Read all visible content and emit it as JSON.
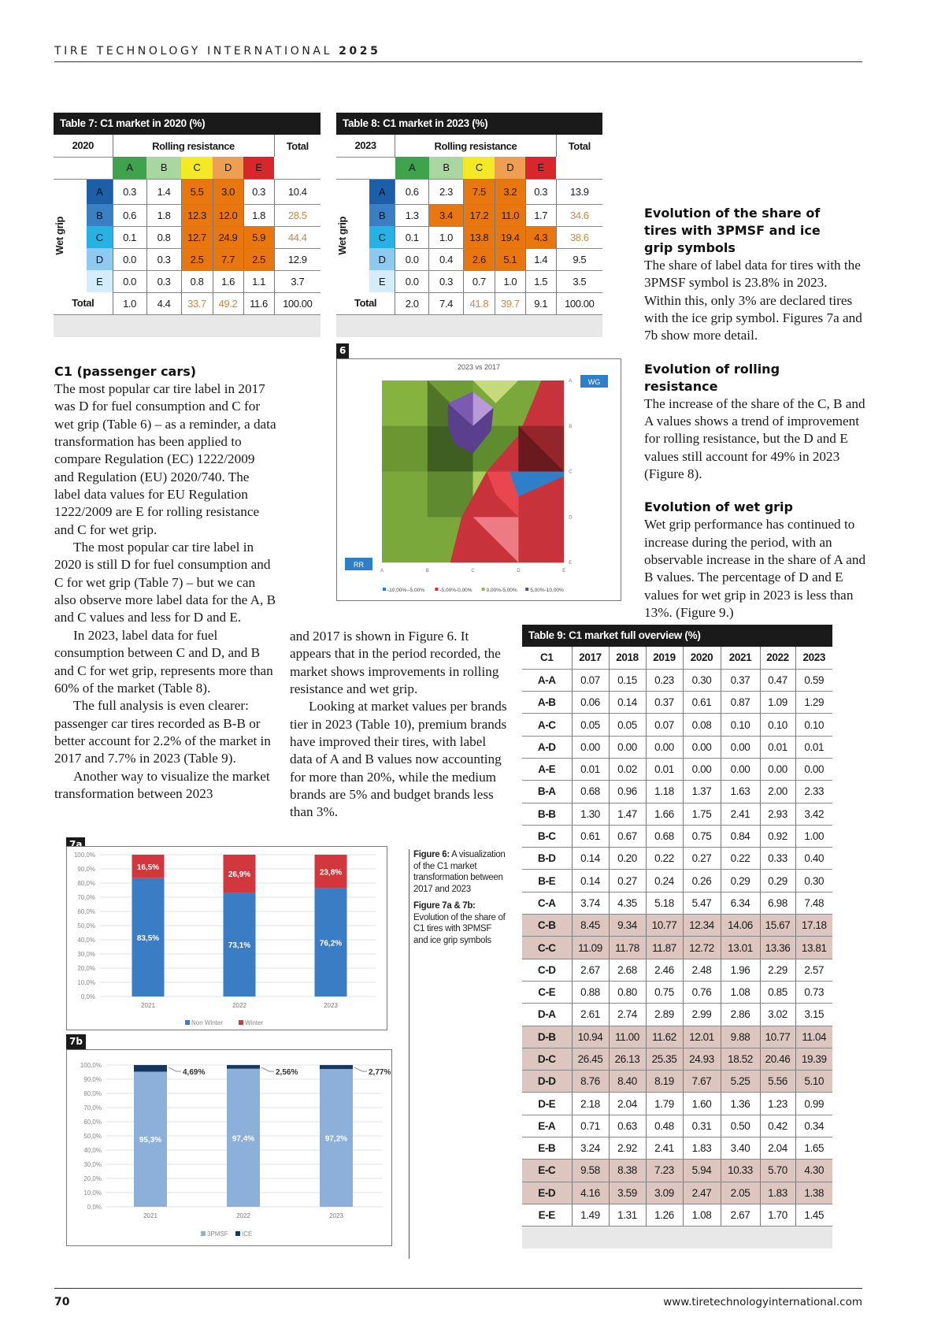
{
  "header": {
    "title": "TIRE TECHNOLOGY INTERNATIONAL",
    "year": "2025"
  },
  "grade_colors": {
    "rr": [
      "#3fa34d",
      "#a9d6a1",
      "#f3ea25",
      "#ef9f52",
      "#d7262c"
    ],
    "wg": [
      "#1c5ea8",
      "#3b7fc3",
      "#27b2e5",
      "#8ecaf0",
      "#d5ecfa"
    ]
  },
  "table7": {
    "title": "Table 7: C1 market in 2020 (%)",
    "year": "2020",
    "rr_label": "Rolling resistance",
    "total_label": "Total",
    "wg_label": "Wet grip",
    "grades": [
      "A",
      "B",
      "C",
      "D",
      "E"
    ],
    "rows": [
      {
        "grade": "A",
        "values": [
          "0.3",
          "1.4",
          "5.5",
          "3.0",
          "0.3"
        ],
        "total": "10.4",
        "hl": [
          0,
          0,
          1,
          1,
          0
        ],
        "tot_hl": 0
      },
      {
        "grade": "B",
        "values": [
          "0.6",
          "1.8",
          "12.3",
          "12.0",
          "1.8"
        ],
        "total": "28.5",
        "hl": [
          0,
          0,
          1,
          1,
          0
        ],
        "tot_hl": 1
      },
      {
        "grade": "C",
        "values": [
          "0.1",
          "0.8",
          "12.7",
          "24.9",
          "5.9"
        ],
        "total": "44.4",
        "hl": [
          0,
          0,
          1,
          1,
          1
        ],
        "tot_hl": 1
      },
      {
        "grade": "D",
        "values": [
          "0.0",
          "0.3",
          "2.5",
          "7.7",
          "2.5"
        ],
        "total": "12.9",
        "hl": [
          0,
          0,
          1,
          1,
          1
        ],
        "tot_hl": 0
      },
      {
        "grade": "E",
        "values": [
          "0.0",
          "0.3",
          "0.8",
          "1.6",
          "1.1"
        ],
        "total": "3.7",
        "hl": [
          0,
          0,
          0,
          0,
          0
        ],
        "tot_hl": 0
      }
    ],
    "totals": {
      "label": "Total",
      "values": [
        "1.0",
        "4.4",
        "33.7",
        "49.2",
        "11.6"
      ],
      "hl": [
        0,
        0,
        1,
        1,
        0
      ],
      "grand": "100.00"
    }
  },
  "table8": {
    "title": "Table 8: C1 market in 2023 (%)",
    "year": "2023",
    "rr_label": "Rolling resistance",
    "total_label": "Total",
    "wg_label": "Wet grip",
    "grades": [
      "A",
      "B",
      "C",
      "D",
      "E"
    ],
    "rows": [
      {
        "grade": "A",
        "values": [
          "0.6",
          "2.3",
          "7.5",
          "3.2",
          "0.3"
        ],
        "total": "13.9",
        "hl": [
          0,
          0,
          1,
          1,
          0
        ],
        "tot_hl": 0
      },
      {
        "grade": "B",
        "values": [
          "1.3",
          "3.4",
          "17.2",
          "11.0",
          "1.7"
        ],
        "total": "34.6",
        "hl": [
          0,
          1,
          1,
          1,
          0
        ],
        "tot_hl": 1
      },
      {
        "grade": "C",
        "values": [
          "0.1",
          "1.0",
          "13.8",
          "19.4",
          "4.3"
        ],
        "total": "38.6",
        "hl": [
          0,
          0,
          1,
          1,
          1
        ],
        "tot_hl": 1
      },
      {
        "grade": "D",
        "values": [
          "0.0",
          "0.4",
          "2.6",
          "5.1",
          "1.4"
        ],
        "total": "9.5",
        "hl": [
          0,
          0,
          1,
          1,
          0
        ],
        "tot_hl": 0
      },
      {
        "grade": "E",
        "values": [
          "0.0",
          "0.3",
          "0.7",
          "1.0",
          "1.5"
        ],
        "total": "3.5",
        "hl": [
          0,
          0,
          0,
          0,
          0
        ],
        "tot_hl": 0
      }
    ],
    "totals": {
      "label": "Total",
      "values": [
        "2.0",
        "7.4",
        "41.8",
        "39.7",
        "9.1"
      ],
      "hl": [
        0,
        0,
        1,
        1,
        0
      ],
      "grand": "100.00"
    }
  },
  "table9": {
    "title": "Table 9: C1 market full overview (%)",
    "columns": [
      "C1",
      "2017",
      "2018",
      "2019",
      "2020",
      "2021",
      "2022",
      "2023"
    ],
    "rows": [
      {
        "label": "A-A",
        "values": [
          "0.07",
          "0.15",
          "0.23",
          "0.30",
          "0.37",
          "0.47",
          "0.59"
        ],
        "shade": 0
      },
      {
        "label": "A-B",
        "values": [
          "0.06",
          "0.14",
          "0.37",
          "0.61",
          "0.87",
          "1.09",
          "1.29"
        ],
        "shade": 0
      },
      {
        "label": "A-C",
        "values": [
          "0.05",
          "0.05",
          "0.07",
          "0.08",
          "0.10",
          "0.10",
          "0.10"
        ],
        "shade": 0
      },
      {
        "label": "A-D",
        "values": [
          "0.00",
          "0.00",
          "0.00",
          "0.00",
          "0.00",
          "0.01",
          "0.01"
        ],
        "shade": 0
      },
      {
        "label": "A-E",
        "values": [
          "0.01",
          "0.02",
          "0.01",
          "0.00",
          "0.00",
          "0.00",
          "0.00"
        ],
        "shade": 0
      },
      {
        "label": "B-A",
        "values": [
          "0.68",
          "0.96",
          "1.18",
          "1.37",
          "1.63",
          "2.00",
          "2.33"
        ],
        "shade": 0
      },
      {
        "label": "B-B",
        "values": [
          "1.30",
          "1.47",
          "1.66",
          "1.75",
          "2.41",
          "2.93",
          "3.42"
        ],
        "shade": 0
      },
      {
        "label": "B-C",
        "values": [
          "0.61",
          "0.67",
          "0.68",
          "0.75",
          "0.84",
          "0.92",
          "1.00"
        ],
        "shade": 0
      },
      {
        "label": "B-D",
        "values": [
          "0.14",
          "0.20",
          "0.22",
          "0.27",
          "0.22",
          "0.33",
          "0.40"
        ],
        "shade": 0
      },
      {
        "label": "B-E",
        "values": [
          "0.14",
          "0.27",
          "0.24",
          "0.26",
          "0.29",
          "0.29",
          "0.30"
        ],
        "shade": 0
      },
      {
        "label": "C-A",
        "values": [
          "3.74",
          "4.35",
          "5.18",
          "5.47",
          "6.34",
          "6.98",
          "7.48"
        ],
        "shade": 0
      },
      {
        "label": "C-B",
        "values": [
          "8.45",
          "9.34",
          "10.77",
          "12.34",
          "14.06",
          "15.67",
          "17.18"
        ],
        "shade": 1
      },
      {
        "label": "C-C",
        "values": [
          "11.09",
          "11.78",
          "11.87",
          "12.72",
          "13.01",
          "13.36",
          "13.81"
        ],
        "shade": 1
      },
      {
        "label": "C-D",
        "values": [
          "2.67",
          "2.68",
          "2.46",
          "2.48",
          "1.96",
          "2.29",
          "2.57"
        ],
        "shade": 0
      },
      {
        "label": "C-E",
        "values": [
          "0.88",
          "0.80",
          "0.75",
          "0.76",
          "1.08",
          "0.85",
          "0.73"
        ],
        "shade": 0
      },
      {
        "label": "D-A",
        "values": [
          "2.61",
          "2.74",
          "2.89",
          "2.99",
          "2.86",
          "3.02",
          "3.15"
        ],
        "shade": 0
      },
      {
        "label": "D-B",
        "values": [
          "10.94",
          "11.00",
          "11.62",
          "12.01",
          "9.88",
          "10.77",
          "11.04"
        ],
        "shade": 1
      },
      {
        "label": "D-C",
        "values": [
          "26.45",
          "26.13",
          "25.35",
          "24.93",
          "18.52",
          "20.46",
          "19.39"
        ],
        "shade": 1
      },
      {
        "label": "D-D",
        "values": [
          "8.76",
          "8.40",
          "8.19",
          "7.67",
          "5.25",
          "5.56",
          "5.10"
        ],
        "shade": 1
      },
      {
        "label": "D-E",
        "values": [
          "2.18",
          "2.04",
          "1.79",
          "1.60",
          "1.36",
          "1.23",
          "0.99"
        ],
        "shade": 0
      },
      {
        "label": "E-A",
        "values": [
          "0.71",
          "0.63",
          "0.48",
          "0.31",
          "0.50",
          "0.42",
          "0.34"
        ],
        "shade": 0
      },
      {
        "label": "E-B",
        "values": [
          "3.24",
          "2.92",
          "2.41",
          "1.83",
          "3.40",
          "2.04",
          "1.65"
        ],
        "shade": 0
      },
      {
        "label": "E-C",
        "values": [
          "9.58",
          "8.38",
          "7.23",
          "5.94",
          "10.33",
          "5.70",
          "4.30"
        ],
        "shade": 1
      },
      {
        "label": "E-D",
        "values": [
          "4.16",
          "3.59",
          "3.09",
          "2.47",
          "2.05",
          "1.83",
          "1.38"
        ],
        "shade": 1
      },
      {
        "label": "E-E",
        "values": [
          "1.49",
          "1.31",
          "1.26",
          "1.08",
          "2.67",
          "1.70",
          "1.45"
        ],
        "shade": 0
      }
    ]
  },
  "left_col": {
    "heading": "C1 (passenger cars)",
    "paragraphs": [
      "The most popular car tire label in 2017 was D for fuel consumption and C for wet grip (Table 6) – as a reminder, a data transformation has been applied to compare Regulation (EC) 1222/2009 and Regulation (EU) 2020/740. The label data values for EU Regulation 1222/2009 are E for rolling resistance and C for wet grip.",
      "The most popular car tire label in 2020 is still D for fuel consumption and C for wet grip (Table 7) – but we can also observe more label data for the A, B and C values and less for D and E.",
      "In 2023, label data for fuel consumption between C and D, and B and C for wet grip, represents more than 60% of the market (Table 8).",
      "The full analysis is even clearer: passenger car tires recorded as B-B or better account for 2.2% of the market in 2017 and 7.7% in 2023 (Table 9).",
      "Another way to visualize the market transformation between 2023"
    ]
  },
  "mid_col": {
    "paragraphs": [
      "and 2017 is shown in Figure 6. It appears that in the period recorded, the market shows improvements in rolling resistance and wet grip.",
      "Looking at market values per brands tier in 2023 (Table 10), premium brands have improved their tires, with label data of A and B values now accounting for more than 20%, while the medium brands are 5% and budget brands less than 3%."
    ]
  },
  "right_col": {
    "sections": [
      {
        "heading": "Evolution of the share of tires with 3PMSF and ice grip symbols",
        "body": "The share of label data for tires with the 3PMSF symbol is 23.8% in 2023. Within this, only 3% are declared tires with the ice grip symbol. Figures 7a and 7b show more detail."
      },
      {
        "heading": "Evolution of rolling resistance",
        "body": "The increase of the share of the C, B and A values shows a trend of improvement for rolling resistance, but the D and E values still account for 49% in 2023 (Figure 8)."
      },
      {
        "heading": "Evolution of wet grip",
        "body": "Wet grip performance has continued to increase during the period, with an observable increase in the share of A and B values. The percentage of D and E values for wet grip in 2023 is less than 13%. (Figure 9.)"
      }
    ]
  },
  "figure6": {
    "label": "6",
    "title": "2023 vs 2017",
    "wg_tag": "WG",
    "rr_tag": "RR",
    "x_ticks": [
      "A",
      "B",
      "C",
      "D",
      "E"
    ],
    "y_ticks": [
      "A",
      "B",
      "C",
      "D",
      "E"
    ],
    "legend": [
      {
        "label": "-10,00%--5,00%",
        "color": "#2f7fc8"
      },
      {
        "label": "-5,00%-0,00%",
        "color": "#d0343b"
      },
      {
        "label": "0,00%-5,00%",
        "color": "#8cbf3f"
      },
      {
        "label": "5,00%-10,00%",
        "color": "#5a4a8a"
      }
    ]
  },
  "caption": {
    "fig6_bold": "Figure 6:",
    "fig6_text": " A visualization of the C1 market transformation between 2017 and 2023",
    "fig7_bold": "Figure 7a & 7b:",
    "fig7_text": " Evolution of the share of C1 tires with 3PMSF and ice grip symbols"
  },
  "chart_data": [
    {
      "id": "7a",
      "type": "bar",
      "stacked": true,
      "label": "7a",
      "categories": [
        "2021",
        "2022",
        "2023"
      ],
      "series": [
        {
          "name": "Non Winter",
          "color": "#3b7dc4",
          "values": [
            83.5,
            73.1,
            76.2
          ],
          "labels": [
            "83,5%",
            "73,1%",
            "76,2%"
          ]
        },
        {
          "name": "Winter",
          "color": "#d2373e",
          "values": [
            16.5,
            26.9,
            23.8
          ],
          "labels": [
            "16,5%",
            "26,9%",
            "23,8%"
          ]
        }
      ],
      "yticks": [
        "0,0%",
        "10,0%",
        "20,0%",
        "30,0%",
        "40,0%",
        "50,0%",
        "60,0%",
        "70,0%",
        "80,0%",
        "90,0%",
        "100,0%"
      ],
      "ylim": [
        0,
        100
      ],
      "grid": true,
      "legend": "bottom"
    },
    {
      "id": "7b",
      "type": "bar",
      "stacked": true,
      "label": "7b",
      "categories": [
        "2021",
        "2022",
        "2023"
      ],
      "series": [
        {
          "name": "3PMSF",
          "color": "#8cb0d9",
          "values": [
            95.3,
            97.4,
            97.2
          ],
          "labels": [
            "95,3%",
            "97,4%",
            "97,2%"
          ]
        },
        {
          "name": "ICE",
          "color": "#17375e",
          "values": [
            4.69,
            2.56,
            2.77
          ],
          "labels": [
            "4,69%",
            "2,56%",
            "2,77%"
          ]
        }
      ],
      "yticks": [
        "0,0%",
        "10,0%",
        "20,0%",
        "30,0%",
        "40,0%",
        "50,0%",
        "60,0%",
        "70,0%",
        "80,0%",
        "90,0%",
        "100,0%"
      ],
      "ylim": [
        0,
        100
      ],
      "grid": true,
      "legend": "bottom"
    }
  ],
  "footer": {
    "page": "70",
    "url": "www.tiretechnologyinternational.com"
  }
}
